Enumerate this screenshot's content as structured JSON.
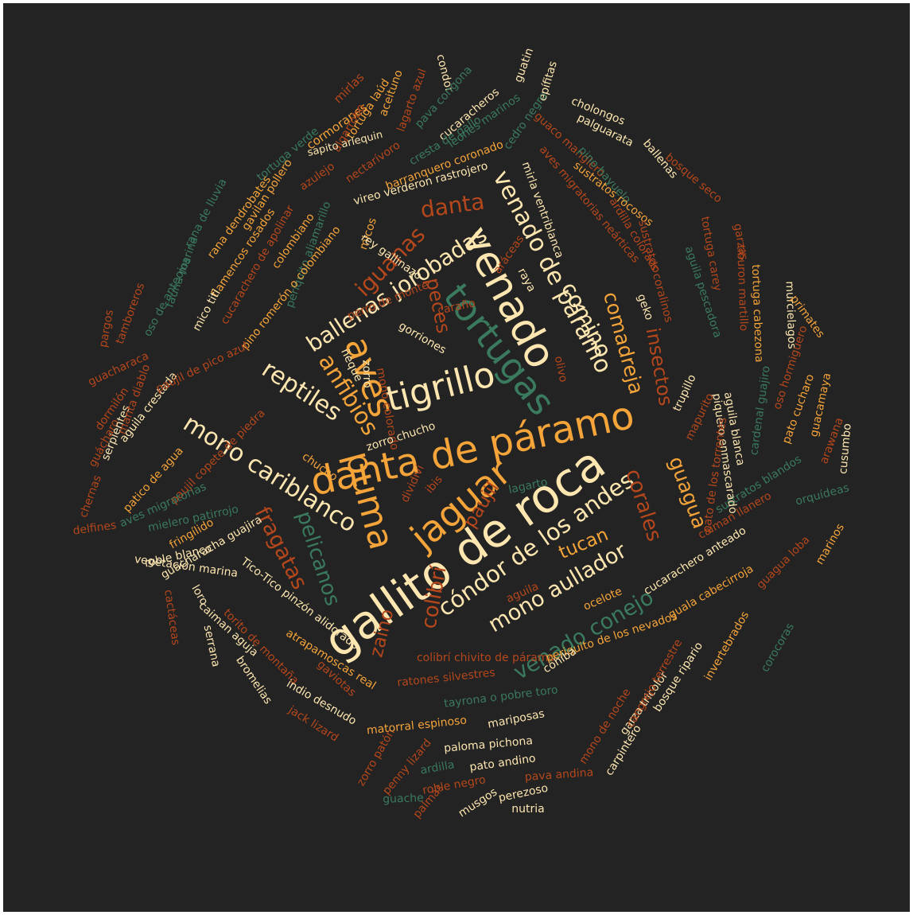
{
  "palette": {
    "background": "#232323",
    "cream": "#fde6b0",
    "orange": "#f5a43a",
    "rust": "#b5471c",
    "green": "#3a7a5e"
  },
  "words": [
    {
      "text": "gallito de roca",
      "color": "cream"
    },
    {
      "text": "danta de páramo",
      "color": "orange"
    },
    {
      "text": "tigrillo",
      "color": "cream"
    },
    {
      "text": "jaguar",
      "color": "orange"
    },
    {
      "text": "venado",
      "color": "cream"
    },
    {
      "text": "puma",
      "color": "orange"
    },
    {
      "text": "tortugas",
      "color": "green"
    },
    {
      "text": "aves",
      "color": "orange"
    },
    {
      "text": "ballenas jorobadas",
      "color": "cream"
    },
    {
      "text": "venado de páramo",
      "color": "cream"
    },
    {
      "text": "cóndor de los andes",
      "color": "cream"
    },
    {
      "text": "mono cariblanco",
      "color": "cream"
    },
    {
      "text": "mono aullador",
      "color": "cream"
    },
    {
      "text": "venado conejo",
      "color": "green"
    },
    {
      "text": "comino",
      "color": "cream"
    },
    {
      "text": "reptiles",
      "color": "cream"
    },
    {
      "text": "anfibios",
      "color": "orange"
    },
    {
      "text": "iguanas",
      "color": "rust"
    },
    {
      "text": "danta",
      "color": "rust"
    },
    {
      "text": "comadreja",
      "color": "orange"
    },
    {
      "text": "insectos",
      "color": "rust"
    },
    {
      "text": "corales",
      "color": "rust"
    },
    {
      "text": "guagua",
      "color": "orange"
    },
    {
      "text": "paujil",
      "color": "rust"
    },
    {
      "text": "tucan",
      "color": "orange"
    },
    {
      "text": "colibrí",
      "color": "rust"
    },
    {
      "text": "zaino",
      "color": "rust"
    },
    {
      "text": "pelicanos",
      "color": "green"
    },
    {
      "text": "fragatas",
      "color": "rust"
    },
    {
      "text": "peces",
      "color": "rust"
    },
    {
      "text": "cormoranes",
      "color": "orange"
    },
    {
      "text": "mirlas",
      "color": "rust"
    },
    {
      "text": "algarrobo",
      "color": "rust"
    },
    {
      "text": "tortuga laúd",
      "color": "orange"
    },
    {
      "text": "aceituno",
      "color": "orange"
    },
    {
      "text": "condor",
      "color": "cream"
    },
    {
      "text": "tortuga verde",
      "color": "green"
    },
    {
      "text": "lagarto azul",
      "color": "rust"
    },
    {
      "text": "pava congona",
      "color": "green"
    },
    {
      "text": "cucaracheros",
      "color": "cream"
    },
    {
      "text": "guatin",
      "color": "cream"
    },
    {
      "text": "epífitas",
      "color": "cream"
    },
    {
      "text": "leones marinos",
      "color": "green"
    },
    {
      "text": "cedro negro",
      "color": "green"
    },
    {
      "text": "sapito arlequin",
      "color": "cream"
    },
    {
      "text": "cholongos",
      "color": "cream"
    },
    {
      "text": "cresta de gallo",
      "color": "green"
    },
    {
      "text": "palguarata",
      "color": "cream"
    },
    {
      "text": "azulejo",
      "color": "rust"
    },
    {
      "text": "nectarívoro",
      "color": "rust"
    },
    {
      "text": "barranquero coronado",
      "color": "orange"
    },
    {
      "text": "guaco manglero",
      "color": "rust"
    },
    {
      "text": "ballenas",
      "color": "cream"
    },
    {
      "text": "gavilan pollero",
      "color": "orange"
    },
    {
      "text": "rana dendrobates",
      "color": "orange"
    },
    {
      "text": "rana de lluvia",
      "color": "green"
    },
    {
      "text": "vireo verderon rastrojero",
      "color": "cream"
    },
    {
      "text": "pino hayuelo",
      "color": "green"
    },
    {
      "text": "bosque seco",
      "color": "rust"
    },
    {
      "text": "aves migratorias neárticas",
      "color": "rust"
    },
    {
      "text": "mirla ventriblanca",
      "color": "cream"
    },
    {
      "text": "sustratos rocosos",
      "color": "orange"
    },
    {
      "text": "fauna marina",
      "color": "green"
    },
    {
      "text": "flamencos rosados",
      "color": "orange"
    },
    {
      "text": "mico titi",
      "color": "cream"
    },
    {
      "text": "micos",
      "color": "orange"
    },
    {
      "text": "periquito aliamarillo",
      "color": "green"
    },
    {
      "text": "cucarachero de apolinar",
      "color": "rust"
    },
    {
      "text": "colombiano",
      "color": "orange"
    },
    {
      "text": "pino romerón o colombiano",
      "color": "orange"
    },
    {
      "text": "oso de anteojos",
      "color": "green"
    },
    {
      "text": "ardilla colorado",
      "color": "rust"
    },
    {
      "text": "sustratos coralinos",
      "color": "rust"
    },
    {
      "text": "tortuga carey",
      "color": "rust"
    },
    {
      "text": "garzas",
      "color": "rust"
    },
    {
      "text": "aguila pescadora",
      "color": "green"
    },
    {
      "text": "murcielagos",
      "color": "cream"
    },
    {
      "text": "tiburon martillo",
      "color": "rust"
    },
    {
      "text": "tortuga cabezona",
      "color": "orange"
    },
    {
      "text": "primates",
      "color": "orange"
    },
    {
      "text": "tamboreros",
      "color": "rust"
    },
    {
      "text": "pargos",
      "color": "rust"
    },
    {
      "text": "guacharaca",
      "color": "rust"
    },
    {
      "text": "dormilón",
      "color": "rust"
    },
    {
      "text": "guácharo",
      "color": "rust"
    },
    {
      "text": "chernas",
      "color": "rust"
    },
    {
      "text": "delfines",
      "color": "rust"
    },
    {
      "text": "serpientes",
      "color": "cream"
    },
    {
      "text": "manta diablo",
      "color": "rust"
    },
    {
      "text": "aguila crestada",
      "color": "cream"
    },
    {
      "text": "paujil de pico azul",
      "color": "rust"
    },
    {
      "text": "paujil copete de piedra",
      "color": "rust"
    },
    {
      "text": "patico de agua",
      "color": "orange"
    },
    {
      "text": "aves migratorias",
      "color": "green"
    },
    {
      "text": "mielero patirrojo",
      "color": "green"
    },
    {
      "text": "fringílido",
      "color": "orange"
    },
    {
      "text": "guacharacha guajira",
      "color": "cream"
    },
    {
      "text": "roble blanco",
      "color": "cream"
    },
    {
      "text": "vegetación marina",
      "color": "cream"
    },
    {
      "text": "Tico-Tico pinzón alidorado",
      "color": "cream"
    },
    {
      "text": "cactáceas",
      "color": "rust"
    },
    {
      "text": "loro",
      "color": "cream"
    },
    {
      "text": "caiman aguja",
      "color": "cream"
    },
    {
      "text": "serrana",
      "color": "cream"
    },
    {
      "text": "torito de montaña",
      "color": "rust"
    },
    {
      "text": "bromelias",
      "color": "cream"
    },
    {
      "text": "indio desnudo",
      "color": "cream"
    },
    {
      "text": "atrapamoscas real",
      "color": "orange"
    },
    {
      "text": "gaviotas",
      "color": "rust"
    },
    {
      "text": "jack lizard",
      "color": "rust"
    },
    {
      "text": "zorro patón",
      "color": "rust"
    },
    {
      "text": "penny lizard",
      "color": "rust"
    },
    {
      "text": "matorral espinoso",
      "color": "orange"
    },
    {
      "text": "ratones silvestres",
      "color": "rust"
    },
    {
      "text": "mariposas",
      "color": "cream"
    },
    {
      "text": "tayrona o pobre toro",
      "color": "green"
    },
    {
      "text": "colibrí chivito de páramo",
      "color": "rust"
    },
    {
      "text": "paloma pichona",
      "color": "cream"
    },
    {
      "text": "ardilla",
      "color": "green"
    },
    {
      "text": "pato andino",
      "color": "cream"
    },
    {
      "text": "roble negro",
      "color": "rust"
    },
    {
      "text": "pava andina",
      "color": "rust"
    },
    {
      "text": "guache",
      "color": "green"
    },
    {
      "text": "palmas",
      "color": "rust"
    },
    {
      "text": "musgos",
      "color": "cream"
    },
    {
      "text": "perezoso",
      "color": "cream"
    },
    {
      "text": "nutria",
      "color": "cream"
    },
    {
      "text": "carpintero",
      "color": "cream"
    },
    {
      "text": "mono de noche",
      "color": "rust"
    },
    {
      "text": "garza tricolor",
      "color": "cream"
    },
    {
      "text": "bosque ripario",
      "color": "cream"
    },
    {
      "text": "cangrejo terrestre",
      "color": "rust"
    },
    {
      "text": "invertebrados",
      "color": "orange"
    },
    {
      "text": "corocoras",
      "color": "green"
    },
    {
      "text": "marinos",
      "color": "orange"
    },
    {
      "text": "guagua loba",
      "color": "rust"
    },
    {
      "text": "guala cabecirroja",
      "color": "orange"
    },
    {
      "text": "cucarachero anteado",
      "color": "cream"
    },
    {
      "text": "caiman llanero",
      "color": "rust"
    },
    {
      "text": "periquito de los nevados",
      "color": "orange"
    },
    {
      "text": "cohiba",
      "color": "cream"
    },
    {
      "text": "ocelote",
      "color": "orange"
    },
    {
      "text": "aguila",
      "color": "rust"
    },
    {
      "text": "sustratos blandos",
      "color": "green"
    },
    {
      "text": "orquídeas",
      "color": "green"
    },
    {
      "text": "cusumbo",
      "color": "cream"
    },
    {
      "text": "arawana",
      "color": "rust"
    },
    {
      "text": "guacamaya",
      "color": "orange"
    },
    {
      "text": "pato cucharo",
      "color": "orange"
    },
    {
      "text": "oso hormiguero",
      "color": "rust"
    },
    {
      "text": "cardenal guajiro",
      "color": "green"
    },
    {
      "text": "aguila blanca",
      "color": "cream"
    },
    {
      "text": "piquero enmascarado",
      "color": "cream"
    },
    {
      "text": "pato de los torrentes",
      "color": "rust"
    },
    {
      "text": "mapurito",
      "color": "rust"
    },
    {
      "text": "trupillo",
      "color": "cream"
    },
    {
      "text": "geko",
      "color": "cream"
    },
    {
      "text": "aráceas",
      "color": "rust"
    },
    {
      "text": "rey gallinazo",
      "color": "cream"
    },
    {
      "text": "raya",
      "color": "cream"
    },
    {
      "text": "caraño",
      "color": "rust"
    },
    {
      "text": "perro de monte",
      "color": "rust"
    },
    {
      "text": "gorriones",
      "color": "cream"
    },
    {
      "text": "ñeque",
      "color": "cream"
    },
    {
      "text": "zorro",
      "color": "cream"
    },
    {
      "text": "olivo",
      "color": "rust"
    },
    {
      "text": "mono colorado",
      "color": "rust"
    },
    {
      "text": "chucho",
      "color": "orange"
    },
    {
      "text": "zorro chucho",
      "color": "cream"
    },
    {
      "text": "dividivi",
      "color": "rust"
    },
    {
      "text": "ibis",
      "color": "rust"
    },
    {
      "text": "lagarto",
      "color": "green"
    },
    {
      "text": "cobre",
      "color": "rust"
    },
    {
      "text": "cucha",
      "color": "rust"
    },
    {
      "text": "chorlito",
      "color": "green"
    }
  ]
}
